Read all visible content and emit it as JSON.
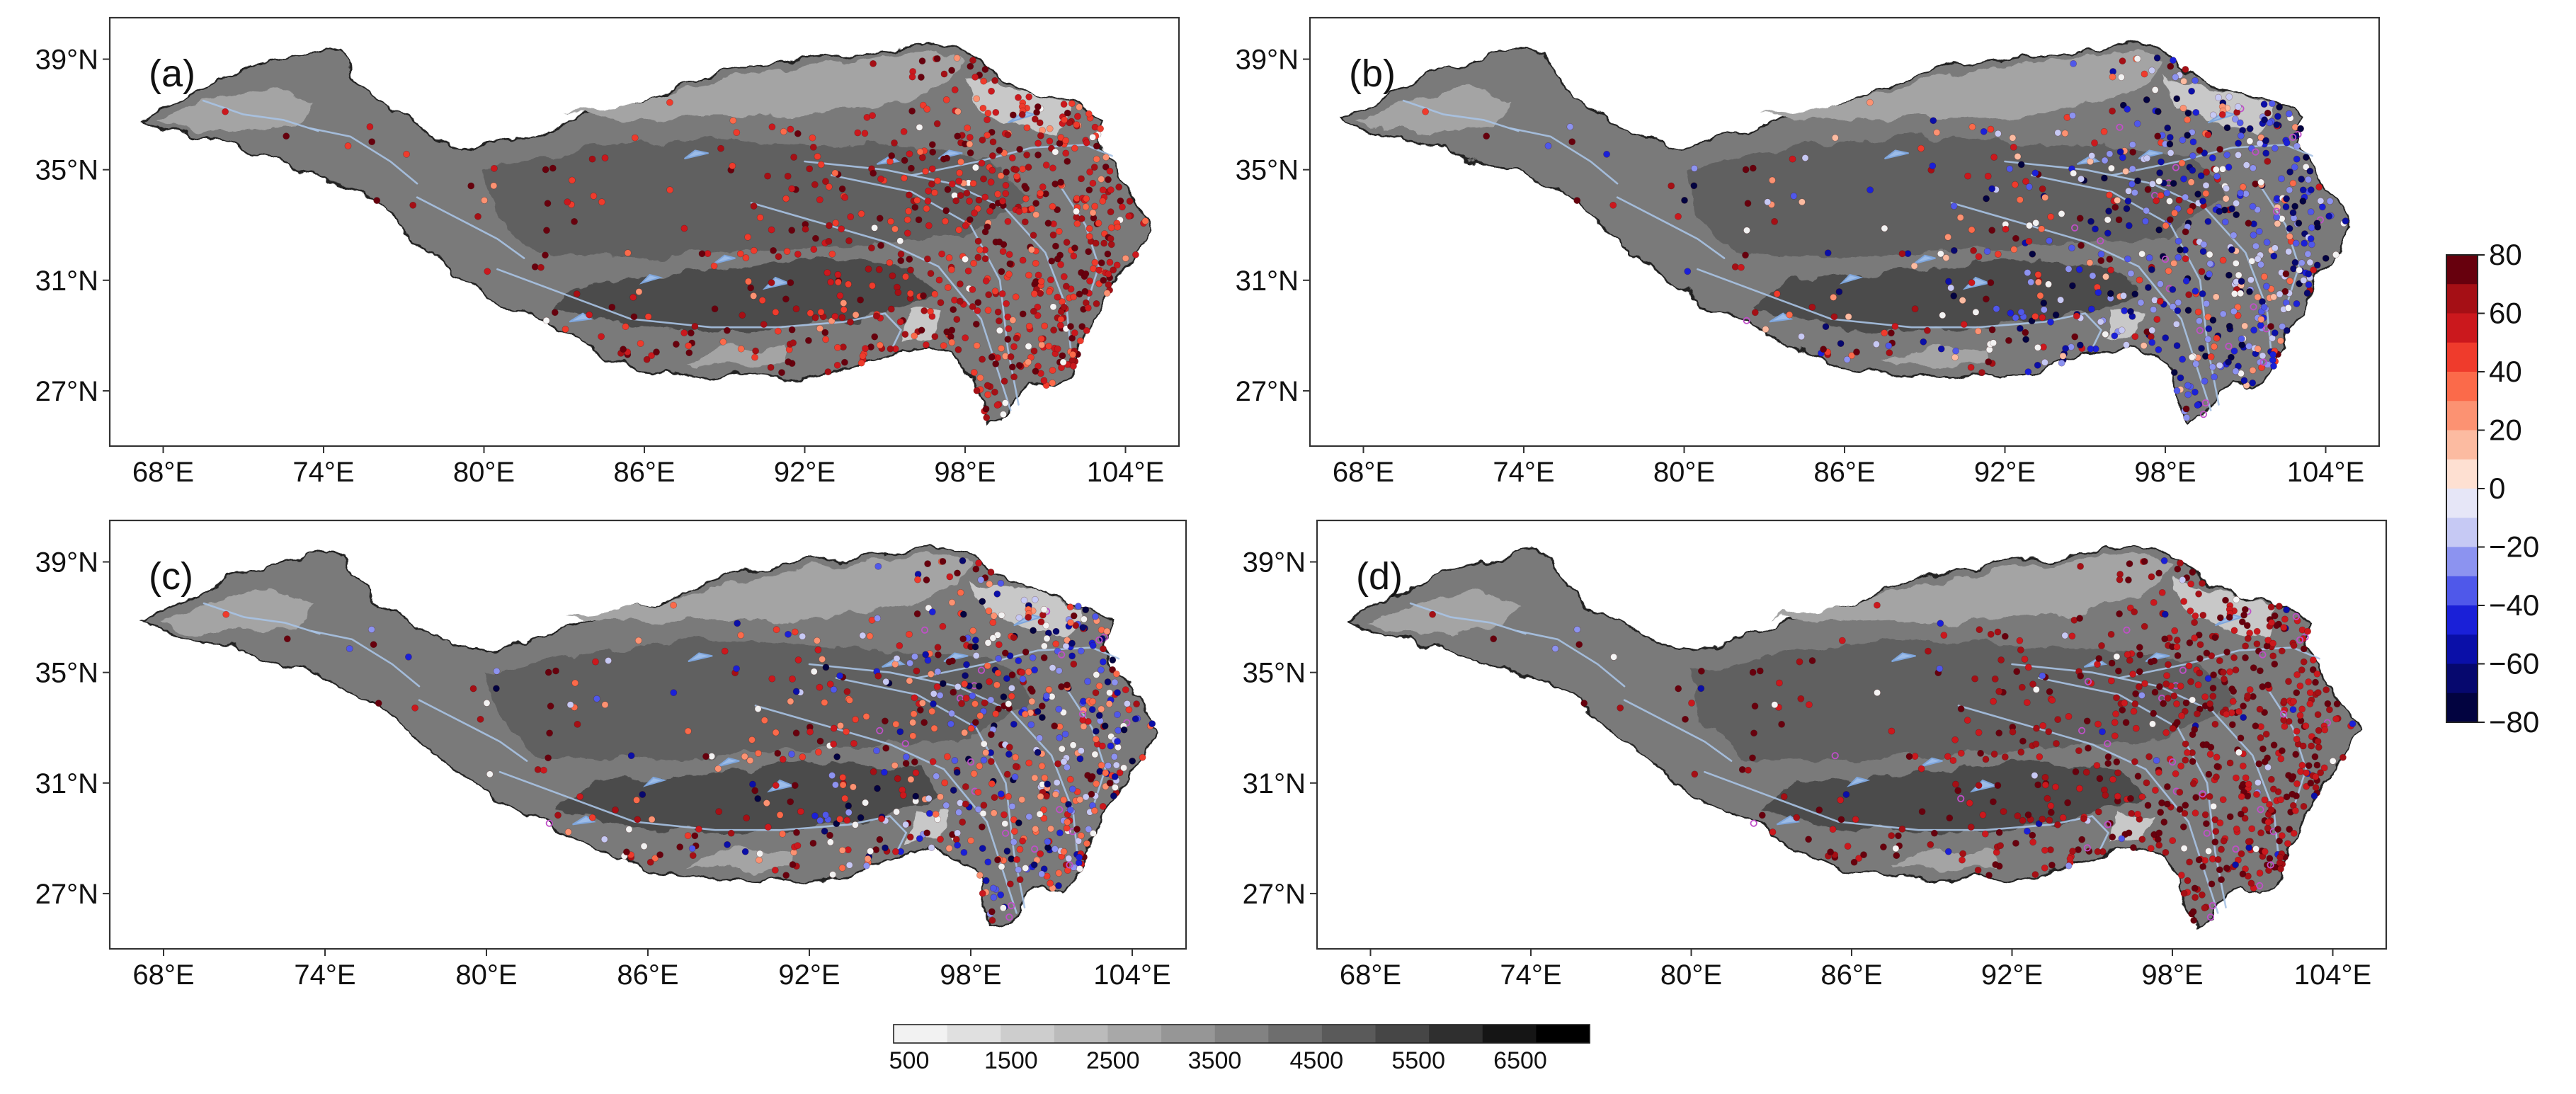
{
  "panels": [
    {
      "id": "a",
      "label": "(a)",
      "scheme": "a"
    },
    {
      "id": "b",
      "label": "(b)",
      "scheme": "b"
    },
    {
      "id": "c",
      "label": "(c)",
      "scheme": "c"
    },
    {
      "id": "d",
      "label": "(d)",
      "scheme": "d"
    }
  ],
  "axes": {
    "lon_ticks": [
      "68°E",
      "74°E",
      "80°E",
      "86°E",
      "92°E",
      "98°E",
      "104°E"
    ],
    "lat_ticks": [
      "39°N",
      "35°N",
      "31°N",
      "27°N"
    ],
    "lon_values": [
      68,
      74,
      80,
      86,
      92,
      98,
      104
    ],
    "lat_values": [
      39,
      35,
      31,
      27
    ],
    "lon_range": [
      66,
      106
    ],
    "lat_range": [
      25,
      40.5
    ]
  },
  "change_colorbar": {
    "ticks": [
      "80",
      "60",
      "40",
      "20",
      "0",
      "−20",
      "−40",
      "−60",
      "−80"
    ],
    "values": [
      80,
      60,
      40,
      20,
      0,
      -20,
      -40,
      -60,
      -80
    ],
    "colors": [
      "#67000d",
      "#a50f15",
      "#cb181d",
      "#ef3b2c",
      "#fb6a4a",
      "#fc9272",
      "#fcbba1",
      "#fee0d2",
      "#e6e6f7",
      "#c6c9f4",
      "#8c93f0",
      "#4f58ea",
      "#1a20d8",
      "#0a0fa8",
      "#06086e",
      "#020340"
    ]
  },
  "elevation_colorbar": {
    "ticks": [
      "500",
      "1500",
      "2500",
      "3500",
      "4500",
      "5500",
      "6500"
    ],
    "values": [
      500,
      1500,
      2500,
      3500,
      4500,
      5500,
      6500
    ],
    "colors": [
      "#f2f2f2",
      "#e0e0e0",
      "#cdcdcd",
      "#bbbbbb",
      "#a8a8a8",
      "#969696",
      "#828282",
      "#6e6e6e",
      "#5a5a5a",
      "#464646",
      "#2f2f2f",
      "#151515",
      "#000000"
    ]
  },
  "plateau_outline": [
    [
      67.2,
      36.9
    ],
    [
      68.3,
      37.4
    ],
    [
      69.5,
      37.9
    ],
    [
      70.4,
      38.5
    ],
    [
      71.5,
      38.8
    ],
    [
      72.5,
      39.0
    ],
    [
      73.4,
      39.3
    ],
    [
      74.2,
      39.4
    ],
    [
      74.8,
      39.2
    ],
    [
      75.2,
      38.4
    ],
    [
      75.9,
      37.5
    ],
    [
      77.0,
      36.9
    ],
    [
      78.3,
      36.2
    ],
    [
      79.5,
      35.8
    ],
    [
      80.3,
      35.9
    ],
    [
      81.2,
      36.1
    ],
    [
      82.5,
      36.4
    ],
    [
      83.8,
      36.9
    ],
    [
      85.2,
      37.3
    ],
    [
      86.8,
      37.7
    ],
    [
      88.3,
      38.3
    ],
    [
      90.0,
      38.7
    ],
    [
      91.8,
      39.0
    ],
    [
      93.0,
      39.1
    ],
    [
      94.0,
      39.2
    ],
    [
      95.5,
      39.4
    ],
    [
      96.8,
      39.6
    ],
    [
      97.6,
      39.4
    ],
    [
      98.5,
      38.9
    ],
    [
      99.6,
      38.2
    ],
    [
      100.5,
      37.8
    ],
    [
      101.7,
      37.5
    ],
    [
      102.7,
      37.2
    ],
    [
      103.2,
      36.8
    ],
    [
      103.0,
      36.0
    ],
    [
      103.4,
      35.2
    ],
    [
      104.0,
      34.4
    ],
    [
      104.5,
      33.6
    ],
    [
      104.9,
      32.9
    ],
    [
      104.5,
      32.0
    ],
    [
      103.8,
      31.2
    ],
    [
      103.2,
      30.2
    ],
    [
      102.6,
      29.2
    ],
    [
      102.3,
      28.3
    ],
    [
      101.9,
      27.6
    ],
    [
      101.3,
      27.1
    ],
    [
      100.4,
      27.3
    ],
    [
      99.8,
      26.7
    ],
    [
      99.4,
      26.0
    ],
    [
      98.8,
      25.8
    ],
    [
      98.4,
      26.6
    ],
    [
      98.3,
      27.6
    ],
    [
      97.6,
      28.3
    ],
    [
      96.6,
      28.6
    ],
    [
      95.4,
      28.4
    ],
    [
      94.2,
      28.0
    ],
    [
      93.0,
      27.6
    ],
    [
      91.9,
      27.4
    ],
    [
      90.6,
      27.5
    ],
    [
      89.5,
      27.6
    ],
    [
      88.5,
      27.5
    ],
    [
      87.2,
      27.7
    ],
    [
      86.0,
      27.8
    ],
    [
      84.8,
      28.2
    ],
    [
      83.6,
      28.8
    ],
    [
      82.3,
      29.5
    ],
    [
      81.0,
      30.0
    ],
    [
      79.8,
      30.7
    ],
    [
      78.6,
      31.6
    ],
    [
      77.6,
      32.4
    ],
    [
      76.6,
      33.3
    ],
    [
      75.7,
      34.0
    ],
    [
      74.6,
      34.6
    ],
    [
      73.3,
      35.0
    ],
    [
      72.0,
      35.4
    ],
    [
      70.6,
      35.9
    ],
    [
      69.2,
      36.2
    ],
    [
      67.9,
      36.5
    ]
  ],
  "inner_zones": [
    {
      "shade": 1,
      "poly": [
        [
          83.0,
          37.0
        ],
        [
          85.0,
          37.3
        ],
        [
          87.0,
          37.7
        ],
        [
          89.0,
          38.2
        ],
        [
          91.0,
          38.6
        ],
        [
          93.0,
          38.9
        ],
        [
          95.5,
          39.2
        ],
        [
          97.0,
          39.3
        ],
        [
          98.0,
          38.9
        ],
        [
          97.5,
          38.2
        ],
        [
          96.0,
          37.6
        ],
        [
          94.5,
          37.2
        ],
        [
          92.5,
          37.0
        ],
        [
          90.5,
          36.9
        ],
        [
          88.0,
          36.9
        ],
        [
          85.5,
          36.8
        ]
      ]
    },
    {
      "shade": 2,
      "poly": [
        [
          80.0,
          35.0
        ],
        [
          84.0,
          35.8
        ],
        [
          88.0,
          36.2
        ],
        [
          92.0,
          36.0
        ],
        [
          96.0,
          35.8
        ],
        [
          99.0,
          35.4
        ],
        [
          100.5,
          34.0
        ],
        [
          98.0,
          32.6
        ],
        [
          94.0,
          32.3
        ],
        [
          90.0,
          32.1
        ],
        [
          86.0,
          31.8
        ],
        [
          82.0,
          32.0
        ],
        [
          80.5,
          33.3
        ]
      ]
    },
    {
      "shade": 3,
      "poly": [
        [
          82.5,
          30.0
        ],
        [
          86.0,
          29.3
        ],
        [
          90.0,
          29.2
        ],
        [
          94.0,
          29.6
        ],
        [
          97.0,
          30.5
        ],
        [
          96.0,
          31.5
        ],
        [
          92.0,
          31.8
        ],
        [
          88.0,
          31.3
        ],
        [
          84.0,
          31.0
        ]
      ]
    },
    {
      "shade": 0,
      "poly": [
        [
          98.0,
          38.4
        ],
        [
          100.5,
          37.8
        ],
        [
          102.0,
          37.3
        ],
        [
          101.5,
          36.3
        ],
        [
          100.0,
          36.6
        ],
        [
          98.5,
          37.2
        ]
      ]
    },
    {
      "shade": 1,
      "poly": [
        [
          67.8,
          36.8
        ],
        [
          70.0,
          37.6
        ],
        [
          72.0,
          38.0
        ],
        [
          73.6,
          37.5
        ],
        [
          73.0,
          36.6
        ],
        [
          71.0,
          36.4
        ],
        [
          69.0,
          36.4
        ]
      ]
    },
    {
      "shade": 1,
      "poly": [
        [
          87.5,
          28.0
        ],
        [
          89.5,
          27.9
        ],
        [
          91.5,
          27.9
        ],
        [
          91.3,
          28.5
        ],
        [
          89.2,
          28.6
        ]
      ]
    },
    {
      "shade": 0,
      "poly": [
        [
          95.6,
          28.8
        ],
        [
          96.8,
          29.0
        ],
        [
          97.2,
          29.9
        ],
        [
          96.0,
          30.0
        ]
      ]
    }
  ],
  "lakes": [
    [
      [
        90.5,
        30.7
      ],
      [
        91.4,
        30.9
      ],
      [
        90.9,
        31.1
      ]
    ],
    [
      [
        87.5,
        35.4
      ],
      [
        88.4,
        35.6
      ],
      [
        87.9,
        35.7
      ]
    ],
    [
      [
        99.6,
        36.7
      ],
      [
        100.6,
        37.0
      ],
      [
        100.2,
        37.1
      ]
    ],
    [
      [
        88.6,
        31.6
      ],
      [
        89.4,
        31.8
      ],
      [
        89.0,
        31.9
      ]
    ],
    [
      [
        85.9,
        30.9
      ],
      [
        86.6,
        31.1
      ],
      [
        86.2,
        31.2
      ]
    ],
    [
      [
        94.7,
        35.2
      ],
      [
        95.5,
        35.3
      ],
      [
        95.2,
        35.5
      ]
    ],
    [
      [
        83.2,
        29.5
      ],
      [
        84.0,
        29.6
      ],
      [
        83.7,
        29.8
      ]
    ],
    [
      [
        97.0,
        35.4
      ],
      [
        97.9,
        35.6
      ],
      [
        97.4,
        35.7
      ]
    ]
  ],
  "rivers": [
    [
      [
        80.5,
        31.4
      ],
      [
        83.0,
        30.5
      ],
      [
        85.5,
        29.6
      ],
      [
        88.5,
        29.3
      ],
      [
        91.0,
        29.3
      ],
      [
        93.5,
        29.5
      ],
      [
        95.0,
        29.8
      ],
      [
        95.6,
        29.2
      ],
      [
        95.3,
        28.6
      ]
    ],
    [
      [
        90.0,
        33.8
      ],
      [
        92.5,
        33.1
      ],
      [
        95.0,
        32.4
      ],
      [
        97.0,
        31.5
      ],
      [
        98.6,
        29.6
      ],
      [
        99.3,
        27.5
      ],
      [
        99.7,
        26.3
      ]
    ],
    [
      [
        93.0,
        34.8
      ],
      [
        96.0,
        34.2
      ],
      [
        98.2,
        33.0
      ],
      [
        99.3,
        31.0
      ],
      [
        99.6,
        28.5
      ],
      [
        100.0,
        26.5
      ]
    ],
    [
      [
        92.0,
        35.3
      ],
      [
        95.0,
        35.0
      ],
      [
        97.5,
        34.5
      ],
      [
        99.5,
        33.6
      ],
      [
        101.0,
        32.0
      ],
      [
        101.8,
        30.0
      ],
      [
        102.0,
        28.0
      ]
    ],
    [
      [
        96.0,
        34.8
      ],
      [
        98.5,
        35.3
      ],
      [
        100.5,
        35.8
      ],
      [
        102.5,
        35.9
      ],
      [
        103.5,
        35.5
      ]
    ],
    [
      [
        77.5,
        34.0
      ],
      [
        79.5,
        33.0
      ],
      [
        80.5,
        32.5
      ],
      [
        81.5,
        31.8
      ]
    ],
    [
      [
        73.5,
        36.5
      ],
      [
        75.0,
        36.2
      ],
      [
        76.5,
        35.3
      ],
      [
        77.5,
        34.5
      ]
    ],
    [
      [
        69.5,
        37.5
      ],
      [
        71.0,
        37.0
      ],
      [
        72.5,
        36.8
      ],
      [
        73.8,
        36.4
      ]
    ],
    [
      [
        101.5,
        34.5
      ],
      [
        102.5,
        33.0
      ],
      [
        103.0,
        31.5
      ],
      [
        102.5,
        30.0
      ]
    ]
  ]
}
